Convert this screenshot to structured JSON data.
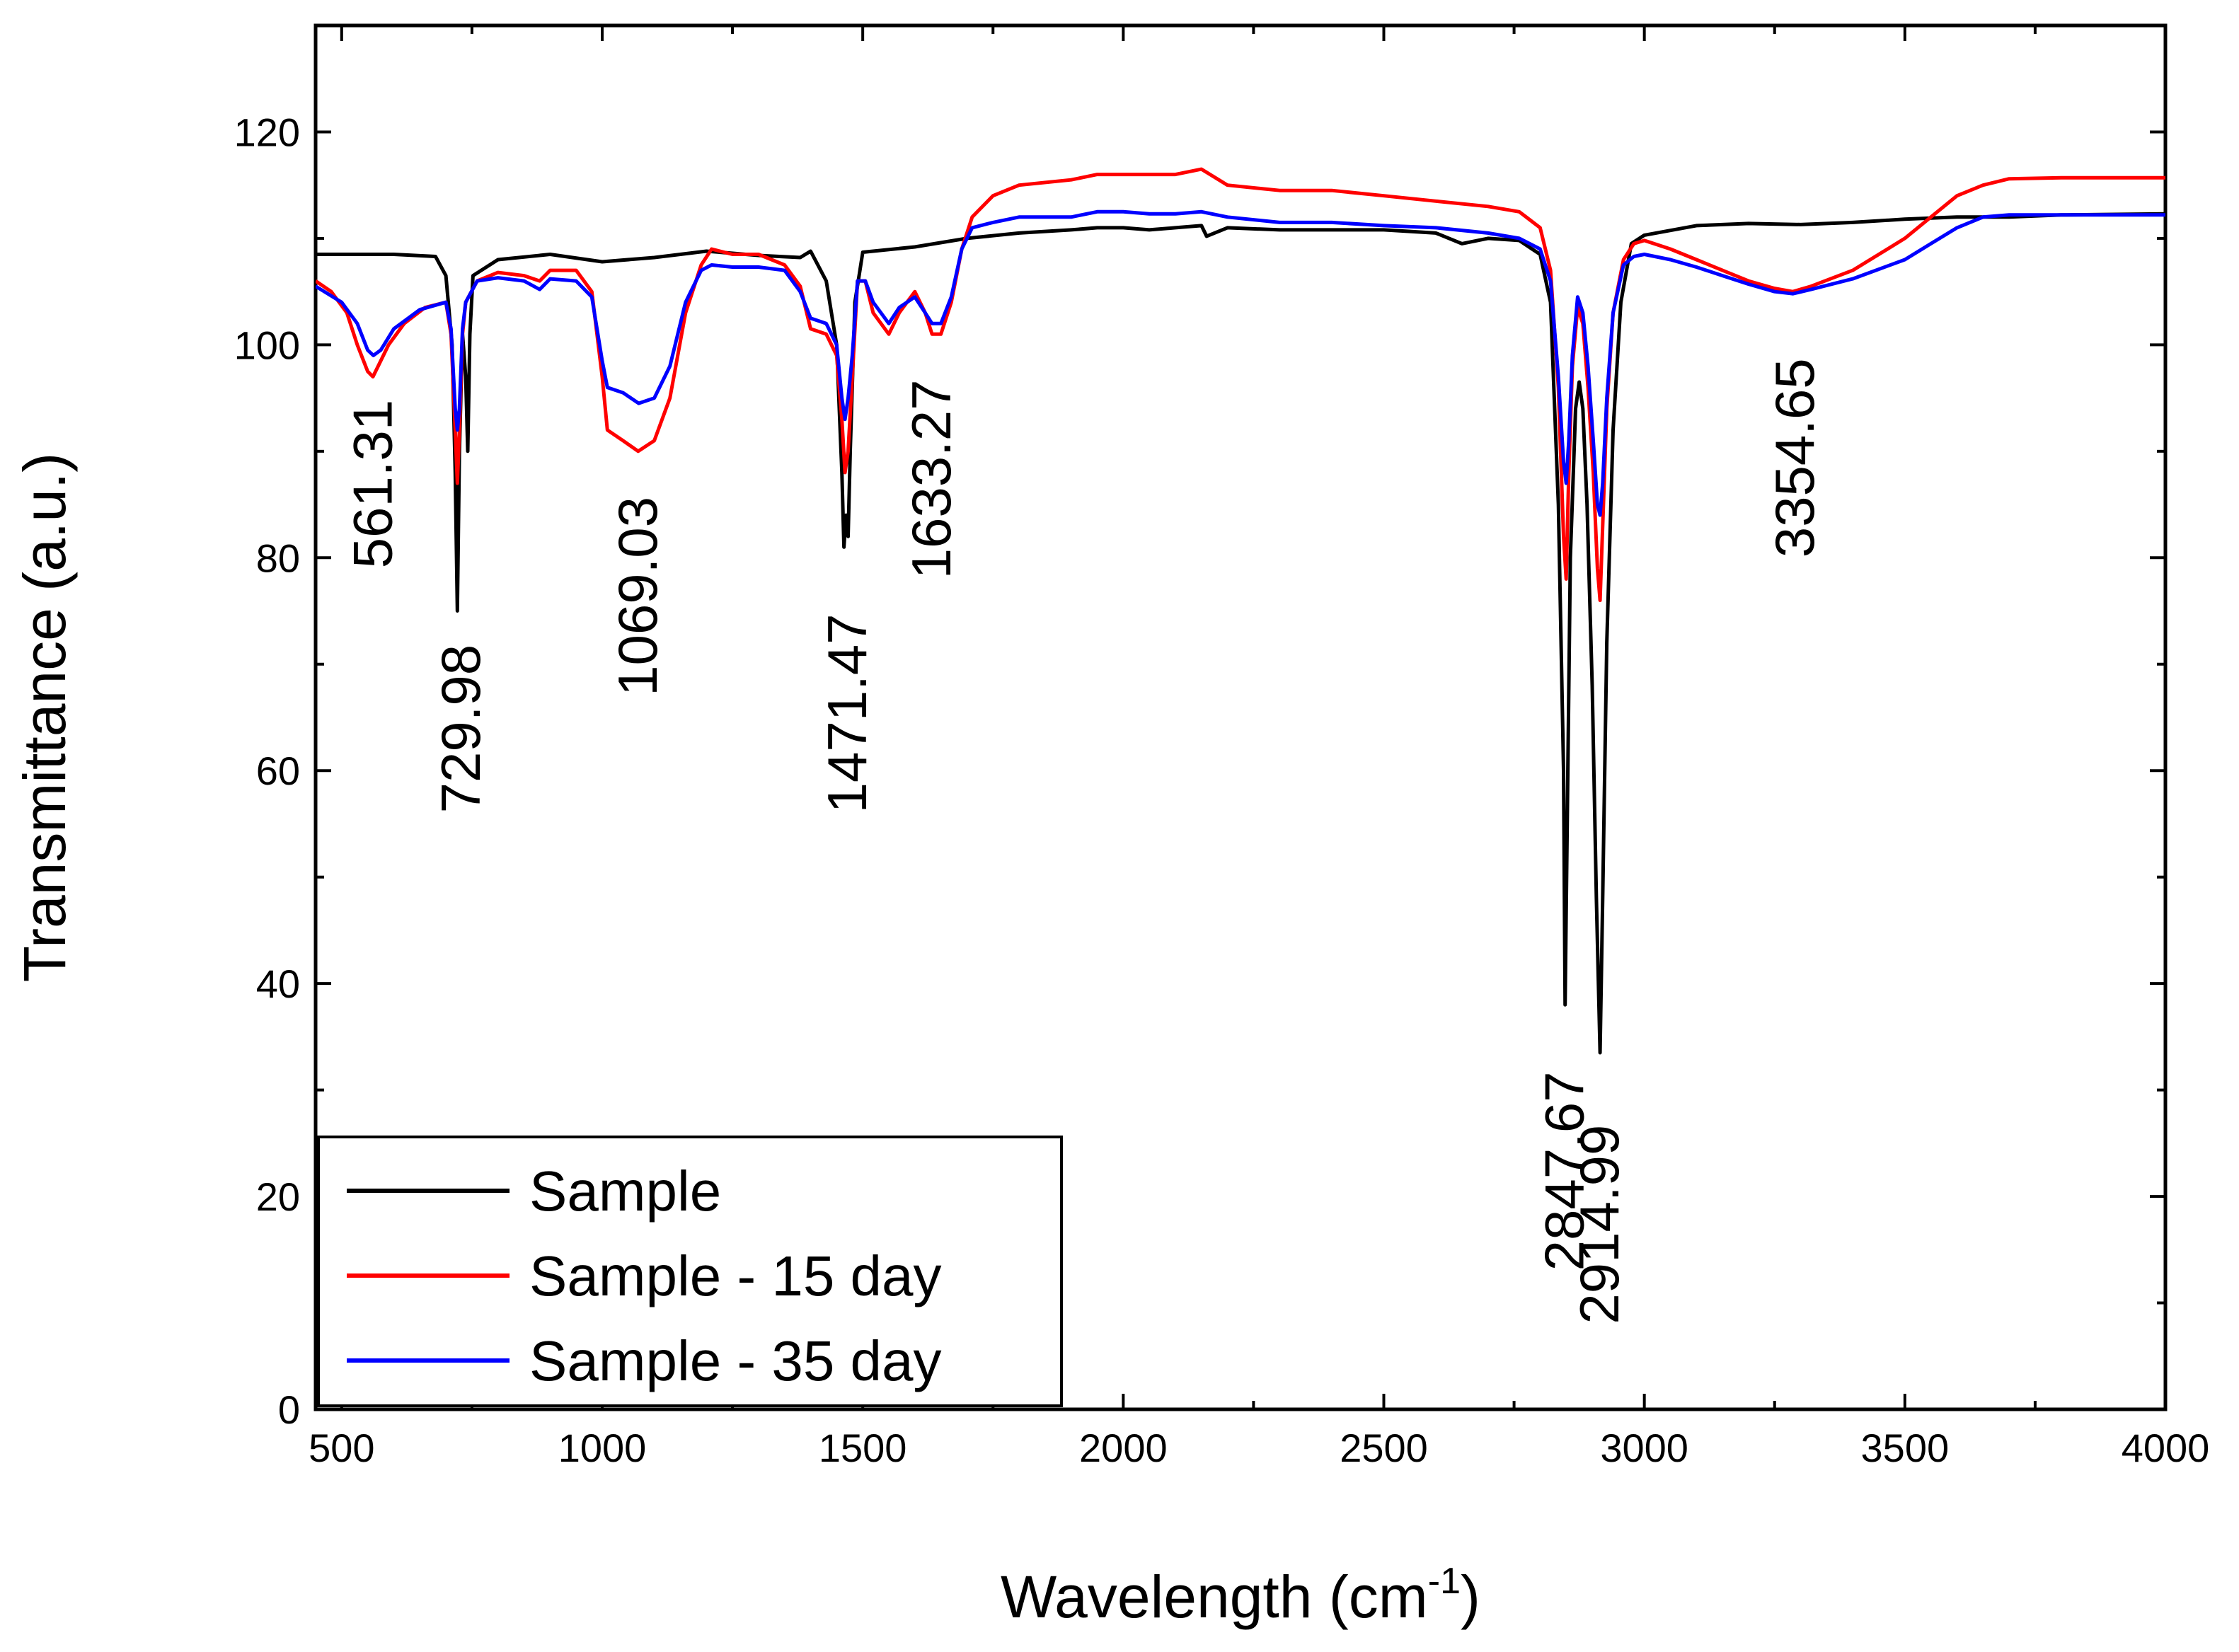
{
  "chart_data": {
    "type": "line",
    "title": "",
    "xlabel": "Wavelength (cm",
    "xlabel_sup": "-1",
    "xlabel_close": ")",
    "ylabel": "Transmittance (a.u.)",
    "xlim": [
      450,
      4000
    ],
    "ylim": [
      0,
      130
    ],
    "xticks": [
      500,
      1000,
      1500,
      2000,
      2500,
      3000,
      3500,
      4000
    ],
    "yticks": [
      0,
      20,
      40,
      60,
      80,
      100,
      120
    ],
    "legend_position": "bottom-left",
    "series": [
      {
        "name": "Sample",
        "color": "#000000",
        "points": [
          [
            450,
            108.5
          ],
          [
            500,
            108.5
          ],
          [
            600,
            108.5
          ],
          [
            680,
            108.3
          ],
          [
            700,
            106.5
          ],
          [
            712,
            100
          ],
          [
            718,
            88
          ],
          [
            722,
            75
          ],
          [
            726,
            90
          ],
          [
            732,
            101
          ],
          [
            738,
            97
          ],
          [
            742,
            90
          ],
          [
            746,
            101
          ],
          [
            752,
            106.5
          ],
          [
            800,
            108
          ],
          [
            900,
            108.5
          ],
          [
            1000,
            107.8
          ],
          [
            1100,
            108.2
          ],
          [
            1200,
            108.8
          ],
          [
            1300,
            108.4
          ],
          [
            1380,
            108.2
          ],
          [
            1400,
            108.8
          ],
          [
            1430,
            106
          ],
          [
            1450,
            100
          ],
          [
            1460,
            88
          ],
          [
            1464,
            81
          ],
          [
            1468,
            84
          ],
          [
            1472,
            82
          ],
          [
            1476,
            90
          ],
          [
            1485,
            104
          ],
          [
            1500,
            108.7
          ],
          [
            1600,
            109.2
          ],
          [
            1700,
            110
          ],
          [
            1800,
            110.5
          ],
          [
            1900,
            110.8
          ],
          [
            1950,
            111
          ],
          [
            2000,
            111
          ],
          [
            2050,
            110.8
          ],
          [
            2100,
            111
          ],
          [
            2150,
            111.2
          ],
          [
            2160,
            110.2
          ],
          [
            2200,
            111
          ],
          [
            2300,
            110.8
          ],
          [
            2400,
            110.8
          ],
          [
            2500,
            110.8
          ],
          [
            2600,
            110.5
          ],
          [
            2650,
            109.5
          ],
          [
            2700,
            110
          ],
          [
            2760,
            109.8
          ],
          [
            2800,
            108.5
          ],
          [
            2820,
            104
          ],
          [
            2835,
            85
          ],
          [
            2845,
            60
          ],
          [
            2848,
            38
          ],
          [
            2852,
            55
          ],
          [
            2858,
            80
          ],
          [
            2868,
            94
          ],
          [
            2875,
            96.5
          ],
          [
            2882,
            94
          ],
          [
            2890,
            85
          ],
          [
            2900,
            68
          ],
          [
            2908,
            48
          ],
          [
            2915,
            33.5
          ],
          [
            2920,
            48
          ],
          [
            2928,
            72
          ],
          [
            2940,
            92
          ],
          [
            2955,
            104
          ],
          [
            2975,
            109.5
          ],
          [
            3000,
            110.3
          ],
          [
            3100,
            111.2
          ],
          [
            3200,
            111.4
          ],
          [
            3300,
            111.3
          ],
          [
            3400,
            111.5
          ],
          [
            3500,
            111.8
          ],
          [
            3600,
            112
          ],
          [
            3700,
            112
          ],
          [
            3800,
            112.2
          ],
          [
            4000,
            112.3
          ]
        ]
      },
      {
        "name": "Sample - 15 day",
        "color": "#ff0000",
        "points": [
          [
            450,
            106
          ],
          [
            480,
            105
          ],
          [
            510,
            103
          ],
          [
            530,
            100
          ],
          [
            550,
            97.5
          ],
          [
            560,
            97
          ],
          [
            570,
            98
          ],
          [
            590,
            100
          ],
          [
            620,
            102
          ],
          [
            660,
            103.5
          ],
          [
            700,
            104
          ],
          [
            710,
            101
          ],
          [
            718,
            92
          ],
          [
            722,
            87
          ],
          [
            726,
            92
          ],
          [
            732,
            101
          ],
          [
            738,
            104
          ],
          [
            760,
            106
          ],
          [
            800,
            106.8
          ],
          [
            850,
            106.5
          ],
          [
            880,
            106
          ],
          [
            900,
            107
          ],
          [
            950,
            107
          ],
          [
            980,
            105
          ],
          [
            1000,
            97
          ],
          [
            1010,
            92
          ],
          [
            1040,
            91
          ],
          [
            1069,
            90
          ],
          [
            1100,
            91
          ],
          [
            1130,
            95
          ],
          [
            1160,
            103
          ],
          [
            1190,
            107.5
          ],
          [
            1210,
            109
          ],
          [
            1250,
            108.5
          ],
          [
            1300,
            108.5
          ],
          [
            1350,
            107.5
          ],
          [
            1380,
            105.5
          ],
          [
            1400,
            101.5
          ],
          [
            1430,
            101
          ],
          [
            1450,
            99
          ],
          [
            1460,
            93
          ],
          [
            1466,
            88
          ],
          [
            1472,
            90
          ],
          [
            1480,
            97
          ],
          [
            1490,
            106
          ],
          [
            1505,
            106
          ],
          [
            1520,
            103
          ],
          [
            1550,
            101
          ],
          [
            1570,
            103
          ],
          [
            1600,
            105
          ],
          [
            1620,
            103
          ],
          [
            1633,
            101
          ],
          [
            1650,
            101
          ],
          [
            1670,
            104
          ],
          [
            1690,
            109
          ],
          [
            1710,
            112
          ],
          [
            1750,
            114
          ],
          [
            1800,
            115
          ],
          [
            1900,
            115.5
          ],
          [
            1950,
            116
          ],
          [
            2000,
            116
          ],
          [
            2050,
            116
          ],
          [
            2100,
            116
          ],
          [
            2150,
            116.5
          ],
          [
            2200,
            115
          ],
          [
            2300,
            114.5
          ],
          [
            2400,
            114.5
          ],
          [
            2500,
            114
          ],
          [
            2600,
            113.5
          ],
          [
            2700,
            113
          ],
          [
            2760,
            112.5
          ],
          [
            2800,
            111
          ],
          [
            2820,
            107
          ],
          [
            2835,
            96
          ],
          [
            2845,
            82
          ],
          [
            2850,
            78
          ],
          [
            2855,
            88
          ],
          [
            2862,
            98
          ],
          [
            2872,
            103.5
          ],
          [
            2882,
            102
          ],
          [
            2892,
            96
          ],
          [
            2902,
            88
          ],
          [
            2910,
            79
          ],
          [
            2915,
            76
          ],
          [
            2920,
            83
          ],
          [
            2928,
            94
          ],
          [
            2940,
            103
          ],
          [
            2960,
            108
          ],
          [
            2980,
            109.5
          ],
          [
            3000,
            109.8
          ],
          [
            3050,
            109
          ],
          [
            3100,
            108
          ],
          [
            3150,
            107
          ],
          [
            3200,
            106
          ],
          [
            3250,
            105.3
          ],
          [
            3285,
            105
          ],
          [
            3320,
            105.5
          ],
          [
            3400,
            107
          ],
          [
            3500,
            110
          ],
          [
            3550,
            112
          ],
          [
            3600,
            114
          ],
          [
            3650,
            115
          ],
          [
            3700,
            115.6
          ],
          [
            3800,
            115.7
          ],
          [
            4000,
            115.7
          ]
        ]
      },
      {
        "name": "Sample - 35 day",
        "color": "#0000ff",
        "points": [
          [
            450,
            105.5
          ],
          [
            500,
            104
          ],
          [
            530,
            102
          ],
          [
            550,
            99.5
          ],
          [
            561,
            99
          ],
          [
            575,
            99.5
          ],
          [
            600,
            101.5
          ],
          [
            650,
            103.3
          ],
          [
            700,
            104
          ],
          [
            710,
            101.5
          ],
          [
            718,
            94
          ],
          [
            722,
            92
          ],
          [
            726,
            94
          ],
          [
            732,
            101.5
          ],
          [
            738,
            104
          ],
          [
            760,
            106
          ],
          [
            800,
            106.3
          ],
          [
            850,
            106
          ],
          [
            880,
            105.2
          ],
          [
            900,
            106.2
          ],
          [
            950,
            106
          ],
          [
            980,
            104.5
          ],
          [
            1000,
            98.5
          ],
          [
            1010,
            96
          ],
          [
            1040,
            95.5
          ],
          [
            1070,
            94.5
          ],
          [
            1100,
            95
          ],
          [
            1130,
            98
          ],
          [
            1160,
            104
          ],
          [
            1190,
            107
          ],
          [
            1210,
            107.5
          ],
          [
            1250,
            107.3
          ],
          [
            1300,
            107.3
          ],
          [
            1350,
            107
          ],
          [
            1380,
            105
          ],
          [
            1400,
            102.5
          ],
          [
            1430,
            102
          ],
          [
            1450,
            100
          ],
          [
            1460,
            95
          ],
          [
            1466,
            93
          ],
          [
            1472,
            95
          ],
          [
            1480,
            99
          ],
          [
            1490,
            106
          ],
          [
            1505,
            106
          ],
          [
            1520,
            104
          ],
          [
            1550,
            102
          ],
          [
            1570,
            103.5
          ],
          [
            1600,
            104.5
          ],
          [
            1620,
            103
          ],
          [
            1633,
            102
          ],
          [
            1650,
            102
          ],
          [
            1670,
            104.5
          ],
          [
            1690,
            109
          ],
          [
            1710,
            111
          ],
          [
            1750,
            111.5
          ],
          [
            1800,
            112
          ],
          [
            1900,
            112
          ],
          [
            1950,
            112.5
          ],
          [
            2000,
            112.5
          ],
          [
            2050,
            112.3
          ],
          [
            2100,
            112.3
          ],
          [
            2150,
            112.5
          ],
          [
            2200,
            112
          ],
          [
            2300,
            111.5
          ],
          [
            2400,
            111.5
          ],
          [
            2500,
            111.2
          ],
          [
            2600,
            111
          ],
          [
            2700,
            110.5
          ],
          [
            2760,
            110
          ],
          [
            2800,
            109
          ],
          [
            2820,
            106
          ],
          [
            2835,
            97
          ],
          [
            2845,
            89
          ],
          [
            2850,
            87
          ],
          [
            2855,
            91
          ],
          [
            2862,
            99
          ],
          [
            2872,
            104.5
          ],
          [
            2882,
            103
          ],
          [
            2892,
            98
          ],
          [
            2902,
            91
          ],
          [
            2910,
            85
          ],
          [
            2915,
            84
          ],
          [
            2920,
            87
          ],
          [
            2928,
            95
          ],
          [
            2940,
            103
          ],
          [
            2960,
            107.5
          ],
          [
            2980,
            108.3
          ],
          [
            3000,
            108.5
          ],
          [
            3050,
            108
          ],
          [
            3100,
            107.3
          ],
          [
            3150,
            106.5
          ],
          [
            3200,
            105.7
          ],
          [
            3250,
            105
          ],
          [
            3285,
            104.8
          ],
          [
            3320,
            105.2
          ],
          [
            3400,
            106.2
          ],
          [
            3500,
            108
          ],
          [
            3550,
            109.5
          ],
          [
            3600,
            111
          ],
          [
            3650,
            112
          ],
          [
            3700,
            112.2
          ],
          [
            3800,
            112.2
          ],
          [
            4000,
            112.2
          ]
        ]
      }
    ],
    "annotations": [
      {
        "text": "561.31",
        "x": 561,
        "y": 79
      },
      {
        "text": "729.98",
        "x": 730,
        "y": 56
      },
      {
        "text": "1069.03",
        "x": 1069,
        "y": 67
      },
      {
        "text": "1471.47",
        "x": 1471,
        "y": 56
      },
      {
        "text": "1633.27",
        "x": 1633,
        "y": 78
      },
      {
        "text": "2847.67",
        "x": 2848,
        "y": 13
      },
      {
        "text": "2914.99",
        "x": 2915,
        "y": 8
      },
      {
        "text": "3354.65",
        "x": 3290,
        "y": 80
      }
    ]
  }
}
